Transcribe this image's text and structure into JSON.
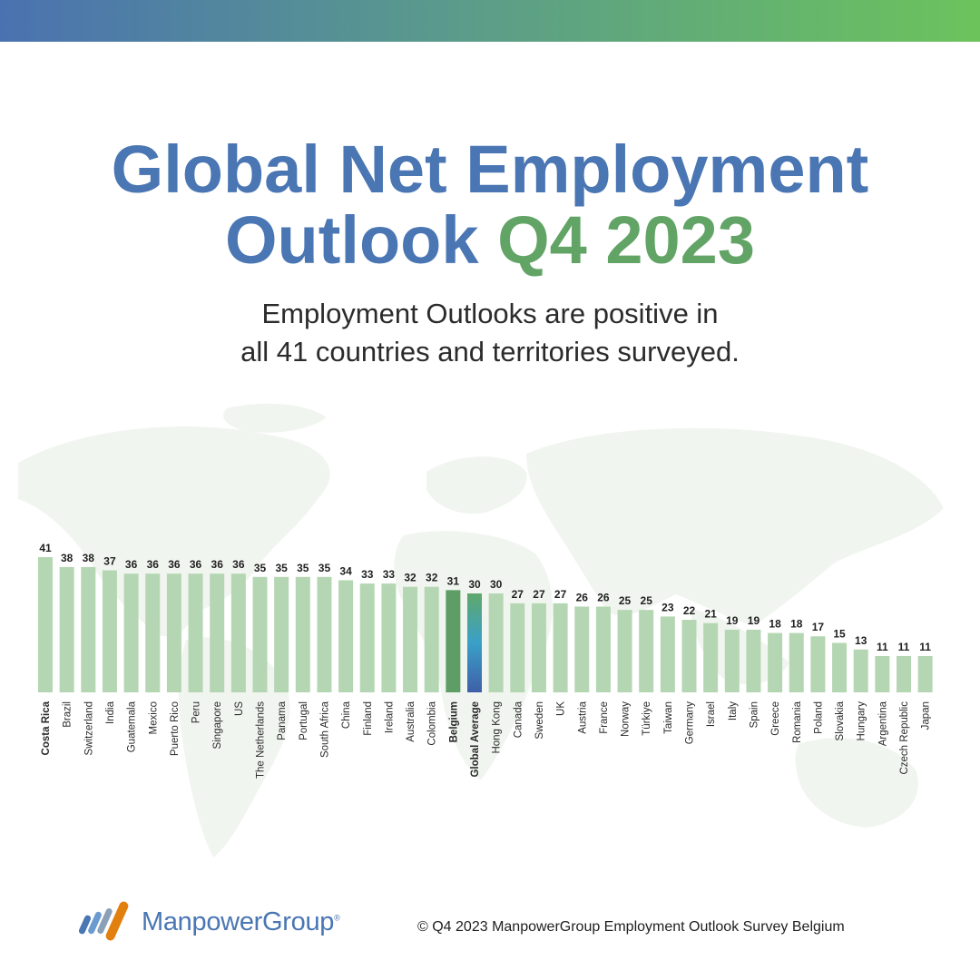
{
  "header": {
    "title_main": "Global Net Employment",
    "title_line2": "Outlook",
    "title_accent": "Q4 2023",
    "subtitle_line1": "Employment Outlooks are positive in",
    "subtitle_line2": "all 41 countries and territories surveyed."
  },
  "colors": {
    "title_blue": "#4a76b3",
    "accent_green": "#62a465",
    "bar_default": "#b5d6b3",
    "bar_belgium": "#5e9e66",
    "bar_global_gradient_top": "#5fa86b",
    "bar_global_gradient_mid": "#3aa0c8",
    "bar_global_gradient_bottom": "#3f5fa8"
  },
  "chart_data": {
    "type": "bar",
    "categories": [
      "Costa Rica",
      "Brazil",
      "Switzerland",
      "India",
      "Guatemala",
      "Mexico",
      "Puerto Rico",
      "Peru",
      "Singapore",
      "US",
      "The Netherlands",
      "Panama",
      "Portugal",
      "South Africa",
      "China",
      "Finland",
      "Ireland",
      "Australia",
      "Colombia",
      "Belgium",
      "Global Average",
      "Hong Kong",
      "Canada",
      "Sweden",
      "UK",
      "Austria",
      "France",
      "Norway",
      "Türkiye",
      "Taiwan",
      "Germany",
      "Israel",
      "Italy",
      "Spain",
      "Greece",
      "Romania",
      "Poland",
      "Slovakia",
      "Hungary",
      "Argentina",
      "Czech Republic",
      "Japan"
    ],
    "values": [
      41,
      38,
      38,
      37,
      36,
      36,
      36,
      36,
      36,
      36,
      35,
      35,
      35,
      35,
      34,
      33,
      33,
      32,
      32,
      31,
      30,
      30,
      27,
      27,
      27,
      26,
      26,
      25,
      25,
      23,
      22,
      21,
      19,
      19,
      18,
      18,
      17,
      15,
      13,
      11,
      11,
      11
    ],
    "highlight": {
      "Belgium": "bar_belgium",
      "Global Average": "gradient"
    },
    "bold_labels": [
      "Costa Rica",
      "Belgium",
      "Global Average"
    ],
    "title": "",
    "xlabel": "",
    "ylabel": "",
    "ylim": [
      0,
      41
    ]
  },
  "footer": {
    "logo_text": "ManpowerGroup",
    "logo_reg": "®",
    "copyright": "© Q4 2023 ManpowerGroup Employment Outlook Survey Belgium"
  }
}
